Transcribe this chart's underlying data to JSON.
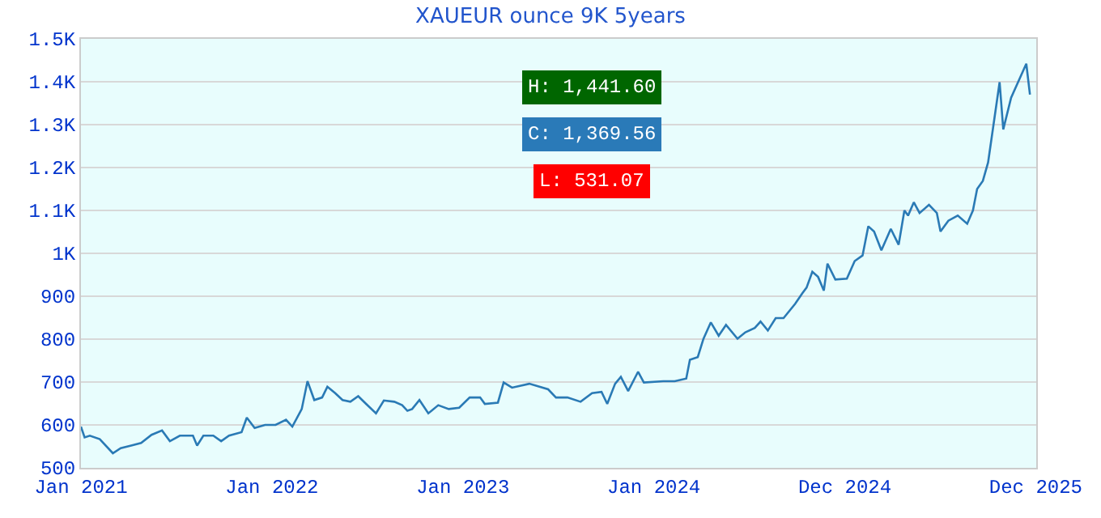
{
  "chart_data": {
    "type": "line",
    "title": "XAUEUR ounce 9K 5years",
    "x": [
      "2021-01-01",
      "2021-01-08",
      "2021-01-18",
      "2021-02-06",
      "2021-03-03",
      "2021-03-18",
      "2021-04-07",
      "2021-04-26",
      "2021-05-16",
      "2021-06-05",
      "2021-06-20",
      "2021-07-09",
      "2021-08-03",
      "2021-08-11",
      "2021-08-23",
      "2021-09-11",
      "2021-09-26",
      "2021-10-11",
      "2021-11-04",
      "2021-11-14",
      "2021-11-29",
      "2021-12-19",
      "2022-01-08",
      "2022-01-28",
      "2022-02-09",
      "2022-02-27",
      "2022-03-10",
      "2022-03-23",
      "2022-04-07",
      "2022-04-17",
      "2022-05-02",
      "2022-05-16",
      "2022-05-31",
      "2022-06-15",
      "2022-06-30",
      "2022-07-19",
      "2022-08-03",
      "2022-08-23",
      "2022-09-07",
      "2022-09-17",
      "2022-09-26",
      "2022-10-10",
      "2022-10-27",
      "2022-11-15",
      "2022-12-05",
      "2022-12-25",
      "2023-01-14",
      "2023-02-03",
      "2023-02-12",
      "2023-03-09",
      "2023-03-20",
      "2023-04-05",
      "2023-05-08",
      "2023-06-13",
      "2023-06-28",
      "2023-07-20",
      "2023-08-14",
      "2023-09-05",
      "2023-09-23",
      "2023-10-04",
      "2023-10-19",
      "2023-10-30",
      "2023-11-13",
      "2023-12-02",
      "2023-12-13",
      "2024-01-19",
      "2024-02-10",
      "2024-03-03",
      "2024-03-10",
      "2024-03-25",
      "2024-04-05",
      "2024-04-19",
      "2024-05-04",
      "2024-05-18",
      "2024-06-09",
      "2024-06-24",
      "2024-07-12",
      "2024-07-23",
      "2024-08-06",
      "2024-08-21",
      "2024-09-05",
      "2024-09-27",
      "2024-10-11",
      "2024-10-19",
      "2024-10-30",
      "2024-11-10",
      "2024-11-21",
      "2024-11-28",
      "2024-12-13",
      "2025-01-04",
      "2025-01-19",
      "2025-02-03",
      "2025-02-14",
      "2025-02-25",
      "2025-03-11",
      "2025-03-29",
      "2025-04-13",
      "2025-04-24",
      "2025-05-01",
      "2025-05-12",
      "2025-05-23",
      "2025-06-10",
      "2025-06-25",
      "2025-07-02",
      "2025-07-17",
      "2025-08-04",
      "2025-08-22",
      "2025-09-02",
      "2025-09-10",
      "2025-09-21",
      "2025-10-01",
      "2025-10-23",
      "2025-10-30",
      "2025-11-14",
      "2025-12-13",
      "2025-12-20"
    ],
    "series": [
      {
        "color": "#2a7ab5",
        "values": [
          596,
          571,
          575,
          567,
          534,
          546,
          552,
          558,
          577,
          587,
          562,
          575,
          575,
          552,
          575,
          575,
          562,
          575,
          583,
          617,
          593,
          600,
          600,
          612,
          596,
          637,
          702,
          658,
          664,
          689,
          674,
          658,
          654,
          667,
          649,
          627,
          657,
          654,
          646,
          633,
          637,
          658,
          627,
          646,
          637,
          640,
          664,
          664,
          649,
          652,
          699,
          687,
          696,
          683,
          664,
          664,
          654,
          674,
          677,
          649,
          696,
          712,
          679,
          724,
          699,
          702,
          702,
          708,
          752,
          758,
          801,
          839,
          808,
          833,
          801,
          816,
          826,
          841,
          820,
          849,
          849,
          882,
          907,
          920,
          957,
          945,
          913,
          976,
          939,
          941,
          982,
          995,
          1063,
          1051,
          1007,
          1057,
          1020,
          1100,
          1088,
          1119,
          1094,
          1113,
          1094,
          1051,
          1076,
          1088,
          1069,
          1100,
          1150,
          1169,
          1212,
          1399,
          1289,
          1363,
          1442,
          1370
        ]
      }
    ],
    "xlim": [
      "2021-01-01",
      "2026-01-01"
    ],
    "xticks": [
      {
        "value": "2021-01-01",
        "label": "Jan 2021"
      },
      {
        "value": "2022-01-01",
        "label": "Jan 2022"
      },
      {
        "value": "2023-01-01",
        "label": "Jan 2023"
      },
      {
        "value": "2024-01-01",
        "label": "Jan 2024"
      },
      {
        "value": "2024-12-31",
        "label": "Dec 2024"
      },
      {
        "value": "2025-12-31",
        "label": "Dec 2025"
      }
    ],
    "ylim": [
      500,
      1500
    ],
    "yticks": [
      500,
      600,
      700,
      800,
      900,
      {
        "value": 1000,
        "label": "1K"
      },
      {
        "value": 1100,
        "label": "1.1K"
      },
      {
        "value": 1200,
        "label": "1.2K"
      },
      {
        "value": 1300,
        "label": "1.3K"
      },
      {
        "value": 1400,
        "label": "1.4K"
      },
      {
        "value": 1500,
        "label": "1.5K"
      }
    ],
    "grid": "y",
    "marker": "none",
    "line_style": "solid",
    "annotations": [
      "H: 1,441.60",
      "C: 1,369.56",
      "L: 531.07"
    ]
  }
}
